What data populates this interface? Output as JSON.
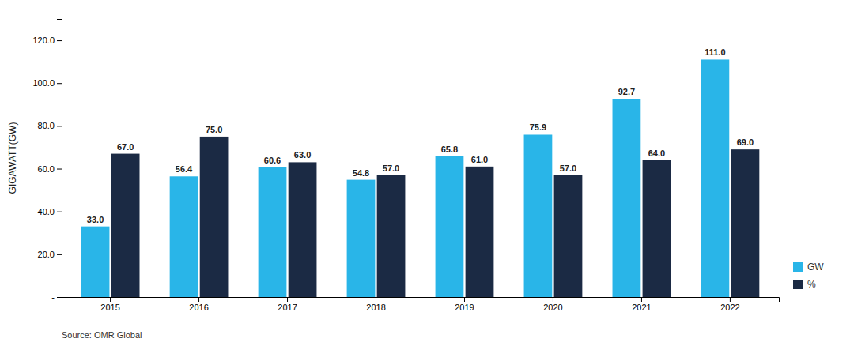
{
  "chart_data": {
    "type": "bar",
    "categories": [
      "2015",
      "2016",
      "2017",
      "2018",
      "2019",
      "2020",
      "2021",
      "2022"
    ],
    "series": [
      {
        "name": "GW",
        "color": "#29B5E8",
        "values": [
          33.0,
          56.4,
          60.6,
          54.8,
          65.8,
          75.9,
          92.7,
          111.0
        ],
        "value_labels": [
          "33.0",
          "56.4",
          "60.6",
          "54.8",
          "65.8",
          "75.9",
          "92.7",
          "111.0"
        ]
      },
      {
        "name": "%",
        "color": "#1B2A44",
        "values": [
          67.0,
          75.0,
          63.0,
          57.0,
          61.0,
          57.0,
          64.0,
          69.0
        ],
        "value_labels": [
          "67.0",
          "75.0",
          "63.0",
          "57.0",
          "61.0",
          "57.0",
          "64.0",
          "69.0"
        ]
      }
    ],
    "y_label": "GIGAWATT(GW)",
    "ylim": [
      0,
      130
    ],
    "yticks": [
      {
        "value": 0,
        "label": "-"
      },
      {
        "value": 20,
        "label": "20.0"
      },
      {
        "value": 40,
        "label": "40.0"
      },
      {
        "value": 60,
        "label": "60.0"
      },
      {
        "value": 80,
        "label": "80.0"
      },
      {
        "value": 100,
        "label": "100.0"
      },
      {
        "value": 120,
        "label": "120.0"
      }
    ],
    "annotations": [
      "Source: OMR Global"
    ],
    "data_labels": true,
    "grid": false,
    "legend": "lower right"
  }
}
